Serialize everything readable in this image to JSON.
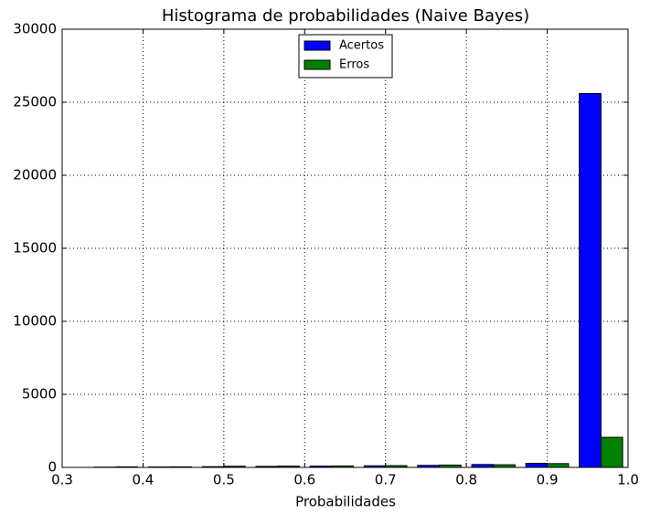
{
  "chart_data": {
    "type": "histogram",
    "title": "Histograma de probabilidades (Naive Bayes)",
    "x_label": "Probabilidades",
    "bins": [
      0.333,
      0.4,
      0.467,
      0.533,
      0.6,
      0.667,
      0.733,
      0.8,
      0.867,
      0.933,
      1.0
    ],
    "series": [
      {
        "name": "Acertos",
        "color": "#0000ff",
        "values": [
          20,
          30,
          50,
          70,
          90,
          110,
          140,
          200,
          280,
          25600
        ]
      },
      {
        "name": "Erros",
        "color": "#008000",
        "values": [
          40,
          40,
          80,
          90,
          100,
          120,
          160,
          180,
          260,
          2060
        ]
      }
    ],
    "xlim": [
      0.3,
      1.0
    ],
    "xticks": [
      0.3,
      0.4,
      0.5,
      0.6,
      0.7,
      0.8,
      0.9,
      {
        "value": 1.0,
        "label": "1.0"
      }
    ],
    "ylim": [
      0,
      30000
    ],
    "yticks": [
      0,
      5000,
      10000,
      15000,
      20000,
      25000,
      30000
    ],
    "grid": true,
    "legend": "upper center"
  }
}
